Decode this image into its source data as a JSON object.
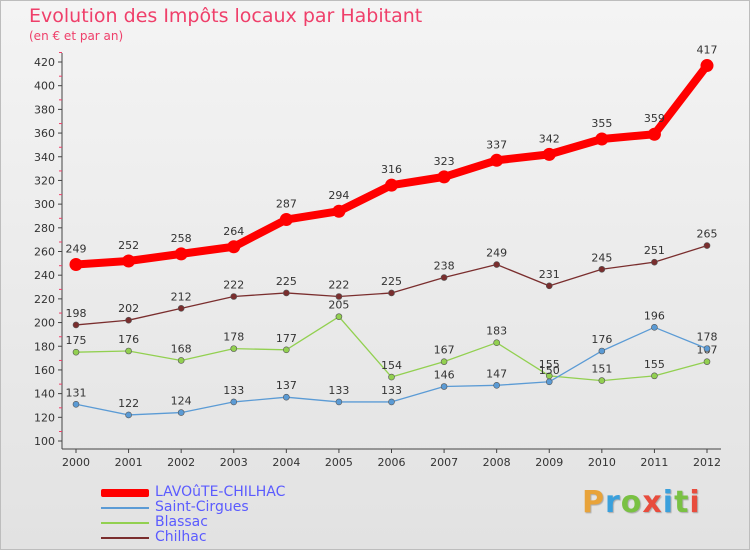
{
  "title": "Evolution des Impôts locaux par Habitant",
  "subtitle": "(en € et par an)",
  "logo": {
    "text": "Proxiti",
    "colors": [
      "#e8a33a",
      "#3aa0dc",
      "#7ac143",
      "#e84c3d",
      "#3aa0dc",
      "#7ac143",
      "#e84c3d"
    ]
  },
  "chart_data": {
    "type": "line",
    "title": "Evolution des Impôts locaux par Habitant",
    "subtitle": "(en € et par an)",
    "xlabel": "",
    "ylabel": "",
    "ylim": [
      100,
      420
    ],
    "yticks": [
      100,
      120,
      140,
      160,
      180,
      200,
      220,
      240,
      260,
      280,
      300,
      320,
      340,
      360,
      380,
      400,
      420
    ],
    "grid": false,
    "legend_position": "bottom-left",
    "categories": [
      "2000",
      "2001",
      "2002",
      "2003",
      "2004",
      "2005",
      "2006",
      "2007",
      "2008",
      "2009",
      "2010",
      "2011",
      "2012"
    ],
    "series": [
      {
        "name": "LAVOûTE-CHILHAC",
        "color": "#ff0000",
        "values": [
          249,
          252,
          258,
          264,
          287,
          294,
          316,
          323,
          337,
          342,
          355,
          359,
          417
        ]
      },
      {
        "name": "Saint-Cirgues",
        "color": "#5b9bd5",
        "values": [
          131,
          122,
          124,
          133,
          137,
          133,
          133,
          146,
          147,
          150,
          176,
          196,
          178
        ]
      },
      {
        "name": "Blassac",
        "color": "#92d050",
        "values": [
          175,
          176,
          168,
          178,
          177,
          205,
          154,
          167,
          183,
          155,
          151,
          155,
          167
        ]
      },
      {
        "name": "Chilhac",
        "color": "#7a2e2e",
        "values": [
          198,
          202,
          212,
          222,
          225,
          222,
          225,
          238,
          249,
          231,
          245,
          251,
          265
        ]
      }
    ]
  }
}
